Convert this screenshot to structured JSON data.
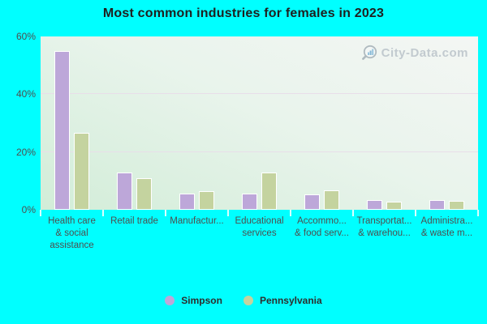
{
  "title": "Most common industries for females in 2023",
  "watermark": {
    "label": "City-Data.com"
  },
  "colors": {
    "background": "#00ffff",
    "simpson": "#bda7d9",
    "pennsylvania": "#c4d39f",
    "bar_border": "#ffffff",
    "grid": "#e8dee9",
    "title_text": "#1f1f1f",
    "axis_text": "#4e4e4e",
    "watermark_text": "#bdc6cc"
  },
  "y_axis": {
    "ticks": [
      "60%",
      "40%",
      "20%",
      "0%"
    ],
    "min": 0,
    "max": 60
  },
  "legend": {
    "items": [
      {
        "label": "Simpson",
        "series": "s0"
      },
      {
        "label": "Pennsylvania",
        "series": "s1"
      }
    ]
  },
  "chart_data": {
    "type": "bar",
    "title": "Most common industries for females in 2023",
    "categories": [
      "Health care & social assistance",
      "Retail trade",
      "Manufacturing",
      "Educational services",
      "Accommodation & food services",
      "Transportation & warehousing",
      "Administrative & waste management"
    ],
    "category_display_lines": [
      [
        "Health care",
        "& social",
        "assistance"
      ],
      [
        "Retail trade"
      ],
      [
        "Manufactur..."
      ],
      [
        "Educational",
        "services"
      ],
      [
        "Accommo...",
        "& food serv..."
      ],
      [
        "Transportat...",
        "& warehou..."
      ],
      [
        "Administra...",
        "& waste m..."
      ]
    ],
    "series": [
      {
        "name": "Simpson",
        "values": [
          55,
          13,
          5.6,
          5.6,
          5.2,
          3.4,
          3.4
        ]
      },
      {
        "name": "Pennsylvania",
        "values": [
          26.5,
          10.8,
          6.5,
          13,
          6.7,
          2.9,
          3.1
        ]
      }
    ],
    "xlabel": "",
    "ylabel": "",
    "ylim": [
      0,
      60
    ],
    "grid": "horizontal",
    "legend_position": "bottom"
  }
}
